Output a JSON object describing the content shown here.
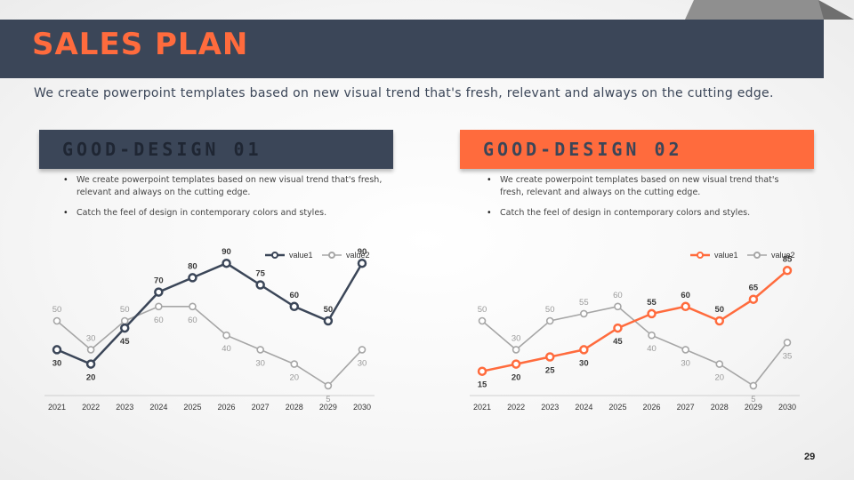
{
  "slide": {
    "title": "SALES PLAN",
    "subtitle": "We create powerpoint templates based on new visual trend that's fresh, relevant and always on the cutting edge.",
    "page_number": "29"
  },
  "panels": [
    {
      "heading": "GOOD-DESIGN 01",
      "bullets": [
        "We create powerpoint templates based on new visual trend that's fresh, relevant and always on the cutting edge.",
        "Catch the feel of design in contemporary colors and styles."
      ]
    },
    {
      "heading": "GOOD-DESIGN 02",
      "bullets": [
        "We create powerpoint templates based on new visual trend that's fresh, relevant and always on the cutting edge.",
        "Catch the feel of design in contemporary colors and styles."
      ]
    }
  ],
  "colors": {
    "navy": "#3b4658",
    "orange": "#ff6b3d",
    "gray_series": "#a6a6a6"
  },
  "chart_data": [
    {
      "type": "line",
      "categories": [
        "2021",
        "2022",
        "2023",
        "2024",
        "2025",
        "2026",
        "2027",
        "2028",
        "2029",
        "2030"
      ],
      "series": [
        {
          "name": "value1",
          "values": [
            30,
            20,
            45,
            70,
            80,
            90,
            75,
            60,
            50,
            90
          ],
          "color": "#3b4658"
        },
        {
          "name": "value2",
          "values": [
            50,
            30,
            50,
            60,
            60,
            40,
            30,
            20,
            5,
            30
          ],
          "color": "#a6a6a6"
        }
      ],
      "ylim": [
        0,
        100
      ],
      "legend": "top-right",
      "grid": false
    },
    {
      "type": "line",
      "categories": [
        "2021",
        "2022",
        "2023",
        "2024",
        "2025",
        "2026",
        "2027",
        "2028",
        "2029",
        "2030"
      ],
      "series": [
        {
          "name": "value1",
          "values": [
            15,
            20,
            25,
            30,
            45,
            55,
            60,
            50,
            65,
            85
          ],
          "color": "#ff6b3d"
        },
        {
          "name": "value2",
          "values": [
            50,
            30,
            50,
            55,
            60,
            40,
            30,
            20,
            5,
            35
          ],
          "color": "#a6a6a6"
        }
      ],
      "ylim": [
        0,
        100
      ],
      "legend": "top-right",
      "grid": false
    }
  ]
}
